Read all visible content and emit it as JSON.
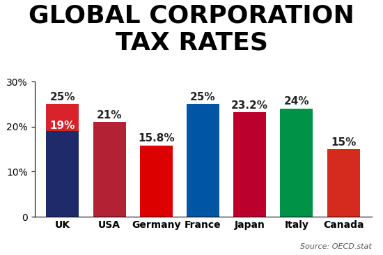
{
  "chart_data": {
    "type": "bar",
    "title": "GLOBAL CORPORATION TAX RATES",
    "source": "Source: OECD.stat",
    "categories": [
      "UK",
      "USA",
      "Germany",
      "France",
      "Japan",
      "Italy",
      "Canada"
    ],
    "series": [
      {
        "colors": [
          "#d8232a",
          "#b22234",
          "#dd0000",
          "#0055a4",
          "#bc002d",
          "#009246",
          "#d52b1e"
        ],
        "values": [
          25,
          21,
          15.8,
          25,
          23.2,
          24,
          15
        ],
        "value_labels": [
          "25%",
          "21%",
          "15.8%",
          "25%",
          "23.2%",
          "24%",
          "15%"
        ]
      },
      {
        "color": "#1f2a6b",
        "values": [
          19,
          null,
          null,
          null,
          null,
          null,
          null
        ],
        "value_labels": [
          "19%",
          null,
          null,
          null,
          null,
          null,
          null
        ]
      }
    ],
    "data_labels": true,
    "grid": false,
    "ylim": [
      0,
      30
    ],
    "yticks": [
      {
        "value": 0,
        "label": "0"
      },
      {
        "value": 10,
        "label": "10%"
      },
      {
        "value": 20,
        "label": "20%"
      },
      {
        "value": 30,
        "label": "30%"
      }
    ]
  }
}
